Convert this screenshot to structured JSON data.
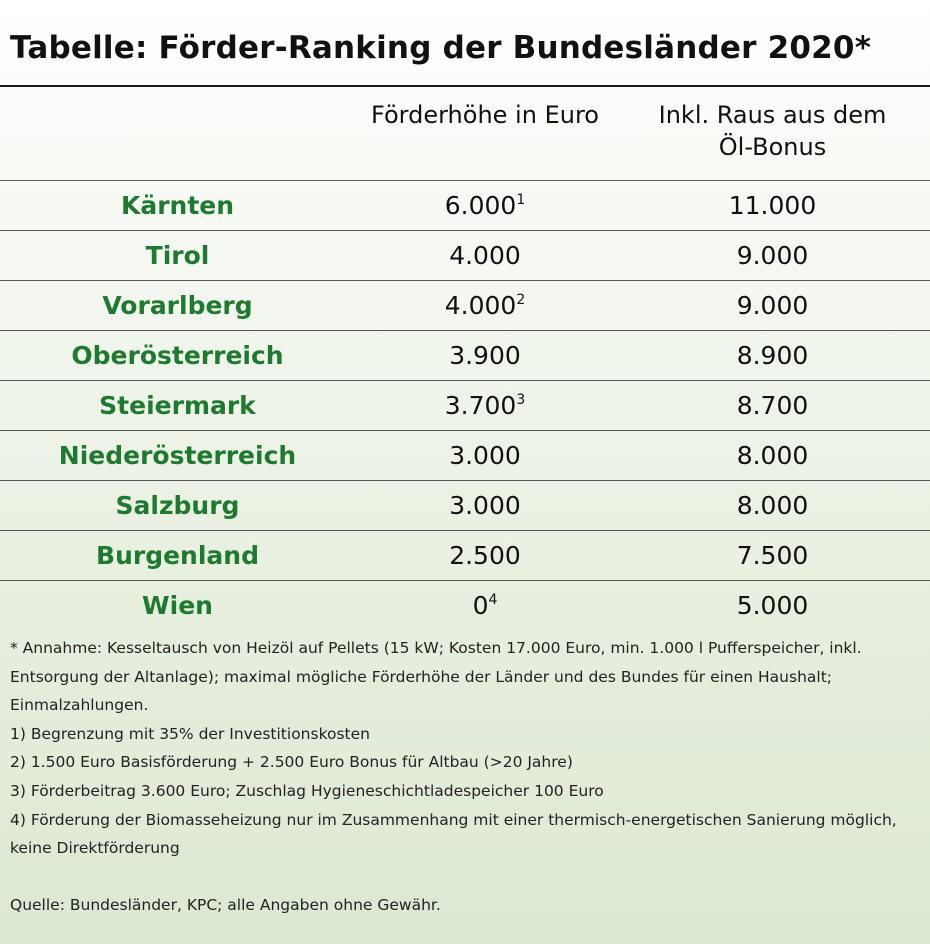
{
  "title": "Tabelle: Förder-Ranking der Bundesländer 2020*",
  "columns": {
    "col1": "Förderhöhe in Euro",
    "col2_line1": "Inkl. Raus aus dem",
    "col2_line2": "Öl-Bonus"
  },
  "rows": [
    {
      "land": "Kärnten",
      "foerderung": "6.000",
      "footnote": "1",
      "inkl": "11.000"
    },
    {
      "land": "Tirol",
      "foerderung": "4.000",
      "footnote": "",
      "inkl": "9.000"
    },
    {
      "land": "Vorarlberg",
      "foerderung": "4.000",
      "footnote": "2",
      "inkl": "9.000"
    },
    {
      "land": "Oberösterreich",
      "foerderung": "3.900",
      "footnote": "",
      "inkl": "8.900"
    },
    {
      "land": "Steiermark",
      "foerderung": "3.700",
      "footnote": "3",
      "inkl": "8.700"
    },
    {
      "land": "Niederösterreich",
      "foerderung": "3.000",
      "footnote": "",
      "inkl": "8.000"
    },
    {
      "land": "Salzburg",
      "foerderung": "3.000",
      "footnote": "",
      "inkl": "8.000"
    },
    {
      "land": "Burgenland",
      "foerderung": "2.500",
      "footnote": "",
      "inkl": "7.500"
    },
    {
      "land": "Wien",
      "foerderung": "0",
      "footnote": "4",
      "inkl": "5.000"
    }
  ],
  "notes": {
    "assumption": "* Annahme: Kesseltausch von Heizöl auf Pellets (15 kW; Kosten 17.000 Euro, min. 1.000 l Pufferspeicher, inkl. Entsorgung der Altanlage); maximal mögliche Förderhöhe der Länder und des Bundes für einen Haushalt; Einmalzahlungen.",
    "fn1": "1) Begrenzung mit 35% der Investitionskosten",
    "fn2": "2) 1.500 Euro Basisförderung + 2.500 Euro Bonus für Altbau (>20 Jahre)",
    "fn3": "3) Förderbeitrag 3.600 Euro; Zuschlag Hygieneschichtladespeicher 100 Euro",
    "fn4": "4) Förderung der Biomasseheizung nur im Zusammenhang mit einer thermisch-energetischen Sanierung möglich, keine Direktförderung",
    "source": "Quelle: Bundesländer, KPC; alle Angaben ohne Gewähr."
  },
  "colors": {
    "land_text": "#1e7a2e",
    "rule": "#1a1a1a"
  }
}
